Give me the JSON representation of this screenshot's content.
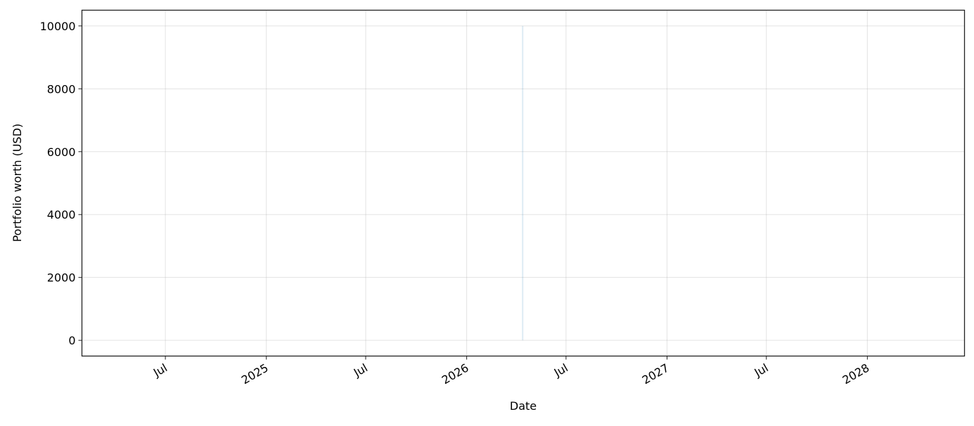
{
  "chart_data": {
    "type": "area",
    "title": "",
    "xlabel": "Date",
    "ylabel": "Portfolio worth (USD)",
    "xlim": [
      "2024-01-31",
      "2028-06-26"
    ],
    "ylim": [
      -500,
      10500
    ],
    "grid": true,
    "x_ticks": [
      {
        "date": "2024-07-01",
        "label": "Jul"
      },
      {
        "date": "2025-01-01",
        "label": "2025"
      },
      {
        "date": "2025-07-01",
        "label": "Jul"
      },
      {
        "date": "2026-01-01",
        "label": "2026"
      },
      {
        "date": "2026-07-01",
        "label": "Jul"
      },
      {
        "date": "2027-01-01",
        "label": "2027"
      },
      {
        "date": "2027-07-01",
        "label": "Jul"
      },
      {
        "date": "2028-01-01",
        "label": "2028"
      }
    ],
    "y_ticks": [
      0,
      2000,
      4000,
      6000,
      8000,
      10000
    ],
    "series": [
      {
        "x": [
          "2026-04-13"
        ],
        "y_low": [
          0
        ],
        "y_high": [
          10000
        ],
        "color": "#1f77b4",
        "alpha": 0.15
      }
    ]
  }
}
